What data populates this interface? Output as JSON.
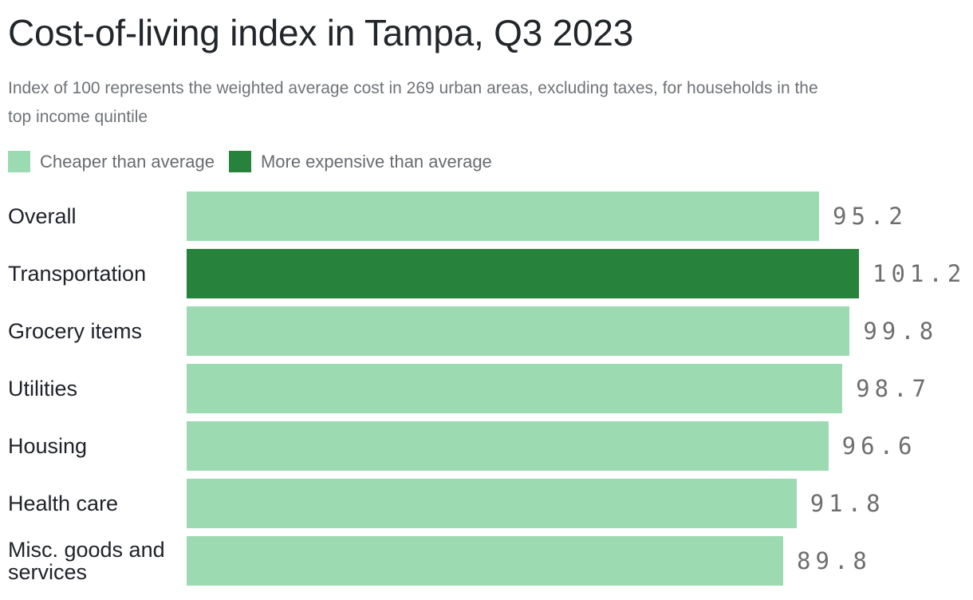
{
  "title": "Cost-of-living index in Tampa, Q3 2023",
  "subtitle_lines": [
    "Index of 100 represents the weighted average cost in 269 urban areas, excluding taxes, for households in the",
    "top income quintile"
  ],
  "colors": {
    "cheaper": "#9cdbb2",
    "expensive": "#27823b",
    "title_text": "#22262b",
    "subtitle_text": "#6f7377",
    "legend_text": "#686b6f",
    "category_text": "#202329",
    "value_text": "#6d6e70"
  },
  "legend": {
    "items": [
      {
        "label": "Cheaper than average",
        "color_key": "cheaper"
      },
      {
        "label": "More expensive than average",
        "color_key": "expensive"
      }
    ]
  },
  "chart_data": {
    "type": "bar",
    "orientation": "horizontal",
    "title": "Cost-of-living index in Tampa, Q3 2023",
    "categories": [
      "Overall",
      "Transportation",
      "Grocery items",
      "Utilities",
      "Housing",
      "Health care",
      "Misc. goods and services"
    ],
    "values": [
      95.2,
      101.2,
      99.8,
      98.7,
      96.6,
      91.8,
      89.8
    ],
    "value_labels": [
      "95.2",
      "101.2",
      "99.8",
      "98.7",
      "96.6",
      "91.8",
      "89.8"
    ],
    "bar_color_keys": [
      "cheaper",
      "expensive",
      "cheaper",
      "cheaper",
      "cheaper",
      "cheaper",
      "cheaper"
    ],
    "baseline": 100,
    "xlim": [
      0,
      101.2
    ],
    "grid": false,
    "legend_position": "top-left",
    "xlabel": "",
    "ylabel": ""
  }
}
